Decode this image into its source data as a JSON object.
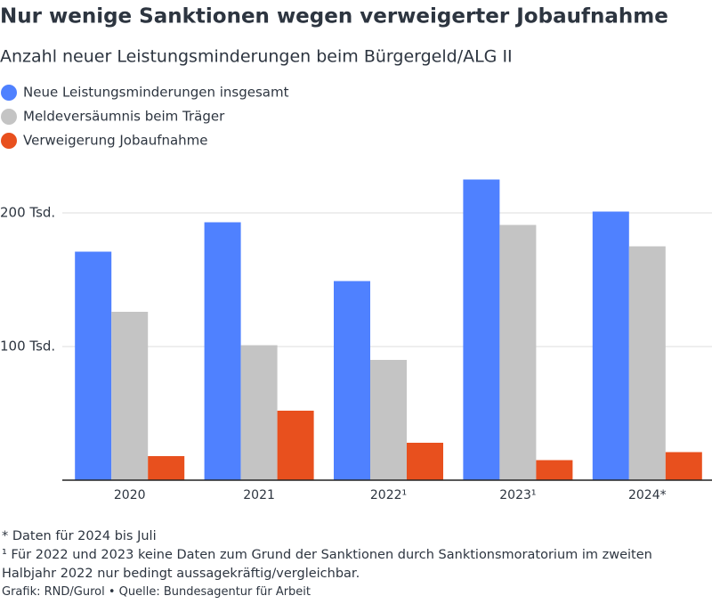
{
  "chart_data": {
    "type": "bar",
    "title": "Nur wenige Sanktionen wegen verweigerter Jobaufnahme",
    "subtitle": "Anzahl neuer Leistungsminderungen beim Bürgergeld/ALG II",
    "categories": [
      "2020",
      "2021",
      "2022¹",
      "2023¹",
      "2024*"
    ],
    "series": [
      {
        "name": "Neue Leistungsminderungen insgesamt",
        "color": "#4f81ff",
        "values": [
          171,
          193,
          149,
          225,
          201
        ]
      },
      {
        "name": "Meldeversäumnis beim Träger",
        "color": "#c4c4c4",
        "values": [
          126,
          101,
          90,
          191,
          175
        ]
      },
      {
        "name": "Verweigerung Jobaufnahme",
        "color": "#e8501e",
        "values": [
          18,
          52,
          28,
          15,
          21
        ]
      }
    ],
    "ylim": [
      0,
      230
    ],
    "yticks": [
      {
        "value": 100,
        "label": "100 Tsd."
      },
      {
        "value": 200,
        "label": "200 Tsd."
      }
    ],
    "grid": true,
    "notes": [
      "* Daten für 2024 bis Juli",
      "¹ Für 2022 und 2023 keine Daten zum Grund der Sanktionen durch Sanktionsmoratorium im zweiten Halbjahr 2022 nur bedingt aussagekräftig/vergleichbar."
    ],
    "source": "Grafik: RND/Gurol • Quelle: Bundesagentur für Arbeit"
  }
}
